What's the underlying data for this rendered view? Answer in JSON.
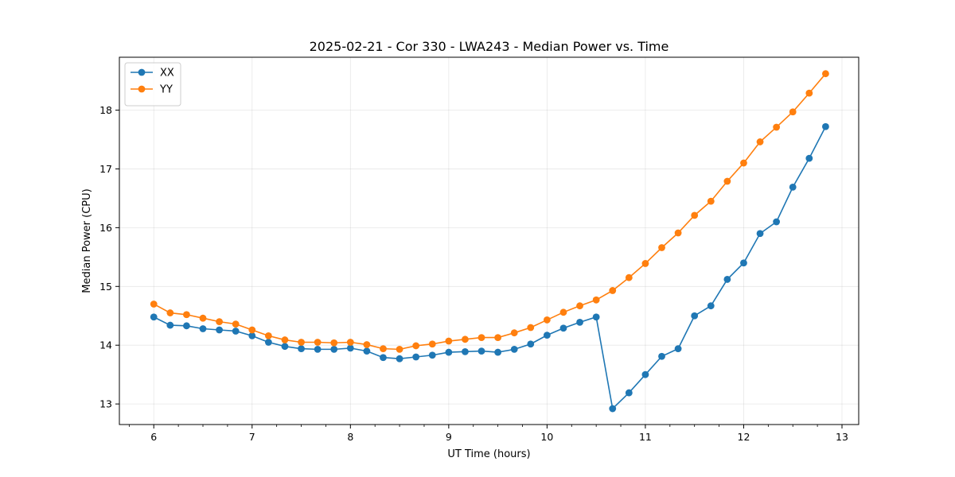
{
  "chart_data": {
    "type": "line",
    "title": "2025-02-21 - Cor 330 - LWA243 - Median Power vs. Time",
    "xlabel": "UT Time (hours)",
    "ylabel": "Median Power (CPU)",
    "xlim": [
      5.65,
      13.17
    ],
    "ylim": [
      12.65,
      18.9
    ],
    "xticks": [
      6,
      7,
      8,
      9,
      10,
      11,
      12,
      13
    ],
    "yticks": [
      13,
      14,
      15,
      16,
      17,
      18
    ],
    "minor_xtick_step": 0.25,
    "grid": true,
    "legend_position": "top-left",
    "x": [
      6.0,
      6.1667,
      6.3333,
      6.5,
      6.6667,
      6.8333,
      7.0,
      7.1667,
      7.3333,
      7.5,
      7.6667,
      7.8333,
      8.0,
      8.1667,
      8.3333,
      8.5,
      8.6667,
      8.8333,
      9.0,
      9.1667,
      9.3333,
      9.5,
      9.6667,
      9.8333,
      10.0,
      10.1667,
      10.3333,
      10.5,
      10.6667,
      10.8333,
      11.0,
      11.1667,
      11.3333,
      11.5,
      11.6667,
      11.8333,
      12.0,
      12.1667,
      12.3333,
      12.5,
      12.6667,
      12.8333
    ],
    "series": [
      {
        "name": "XX",
        "color": "#1f77b4",
        "values": [
          14.48,
          14.34,
          14.33,
          14.28,
          14.26,
          14.24,
          14.16,
          14.05,
          13.98,
          13.94,
          13.93,
          13.93,
          13.95,
          13.9,
          13.79,
          13.77,
          13.8,
          13.83,
          13.88,
          13.89,
          13.9,
          13.88,
          13.93,
          14.02,
          14.17,
          14.29,
          14.39,
          14.48,
          12.92,
          13.19,
          13.5,
          13.81,
          13.94,
          14.5,
          14.67,
          15.12,
          15.4,
          15.9,
          16.1,
          16.69,
          17.18,
          17.72
        ]
      },
      {
        "name": "YY",
        "color": "#ff7f0e",
        "values": [
          14.7,
          14.55,
          14.52,
          14.46,
          14.4,
          14.36,
          14.26,
          14.16,
          14.09,
          14.05,
          14.05,
          14.04,
          14.05,
          14.01,
          13.94,
          13.93,
          13.99,
          14.02,
          14.07,
          14.1,
          14.13,
          14.13,
          14.21,
          14.3,
          14.43,
          14.56,
          14.67,
          14.77,
          14.93,
          15.15,
          15.39,
          15.66,
          15.91,
          16.21,
          16.45,
          16.79,
          17.1,
          17.46,
          17.71,
          17.97,
          18.29,
          18.62
        ]
      }
    ]
  }
}
